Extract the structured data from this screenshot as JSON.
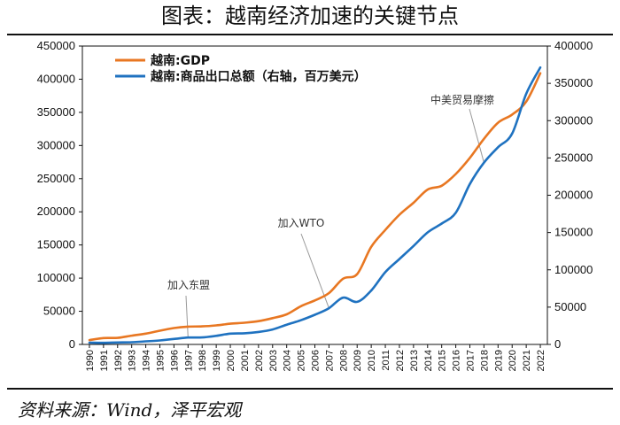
{
  "header": {
    "title": "图表：越南经济加速的关键节点"
  },
  "footer": {
    "source": "资料来源：Wind，泽平宏观"
  },
  "chart_data": {
    "type": "line",
    "title": "图表：越南经济加速的关键节点",
    "x": [
      "1990",
      "1991",
      "1992",
      "1993",
      "1994",
      "1995",
      "1996",
      "1997",
      "1998",
      "1999",
      "2000",
      "2001",
      "2002",
      "2003",
      "2004",
      "2005",
      "2006",
      "2007",
      "2008",
      "2009",
      "2010",
      "2011",
      "2012",
      "2013",
      "2014",
      "2015",
      "2016",
      "2017",
      "2018",
      "2019",
      "2020",
      "2021",
      "2022"
    ],
    "series": [
      {
        "name": "越南:GDP",
        "axis": "left",
        "color": "#E87722",
        "values": [
          6500,
          9600,
          9900,
          13200,
          16300,
          20700,
          24700,
          26800,
          27200,
          28700,
          31200,
          32700,
          35100,
          39600,
          45400,
          57600,
          66400,
          77400,
          99100,
          106000,
          147200,
          172600,
          195600,
          213700,
          233500,
          239300,
          257100,
          281400,
          310100,
          334400,
          346600,
          366100,
          409000
        ]
      },
      {
        "name": "越南:商品出口总额（右轴，百万美元）",
        "axis": "right",
        "color": "#1F72C0",
        "values": [
          2400,
          2100,
          2600,
          3000,
          4100,
          5400,
          7300,
          9200,
          9400,
          11500,
          14500,
          15000,
          16700,
          20100,
          26500,
          32400,
          39800,
          48600,
          62700,
          57100,
          72200,
          96900,
          114500,
          132000,
          150200,
          162000,
          176600,
          215100,
          243700,
          264300,
          282600,
          335900,
          371300
        ]
      }
    ],
    "left_axis": {
      "min": 0,
      "max": 450000,
      "step": 50000
    },
    "right_axis": {
      "min": 0,
      "max": 400000,
      "step": 50000
    },
    "legend_position": "top-left",
    "annotations": [
      {
        "text": "加入东盟",
        "x": "1997"
      },
      {
        "text": "加入WTO",
        "x": "2007"
      },
      {
        "text": "中美贸易摩擦",
        "x": "2018"
      }
    ]
  }
}
